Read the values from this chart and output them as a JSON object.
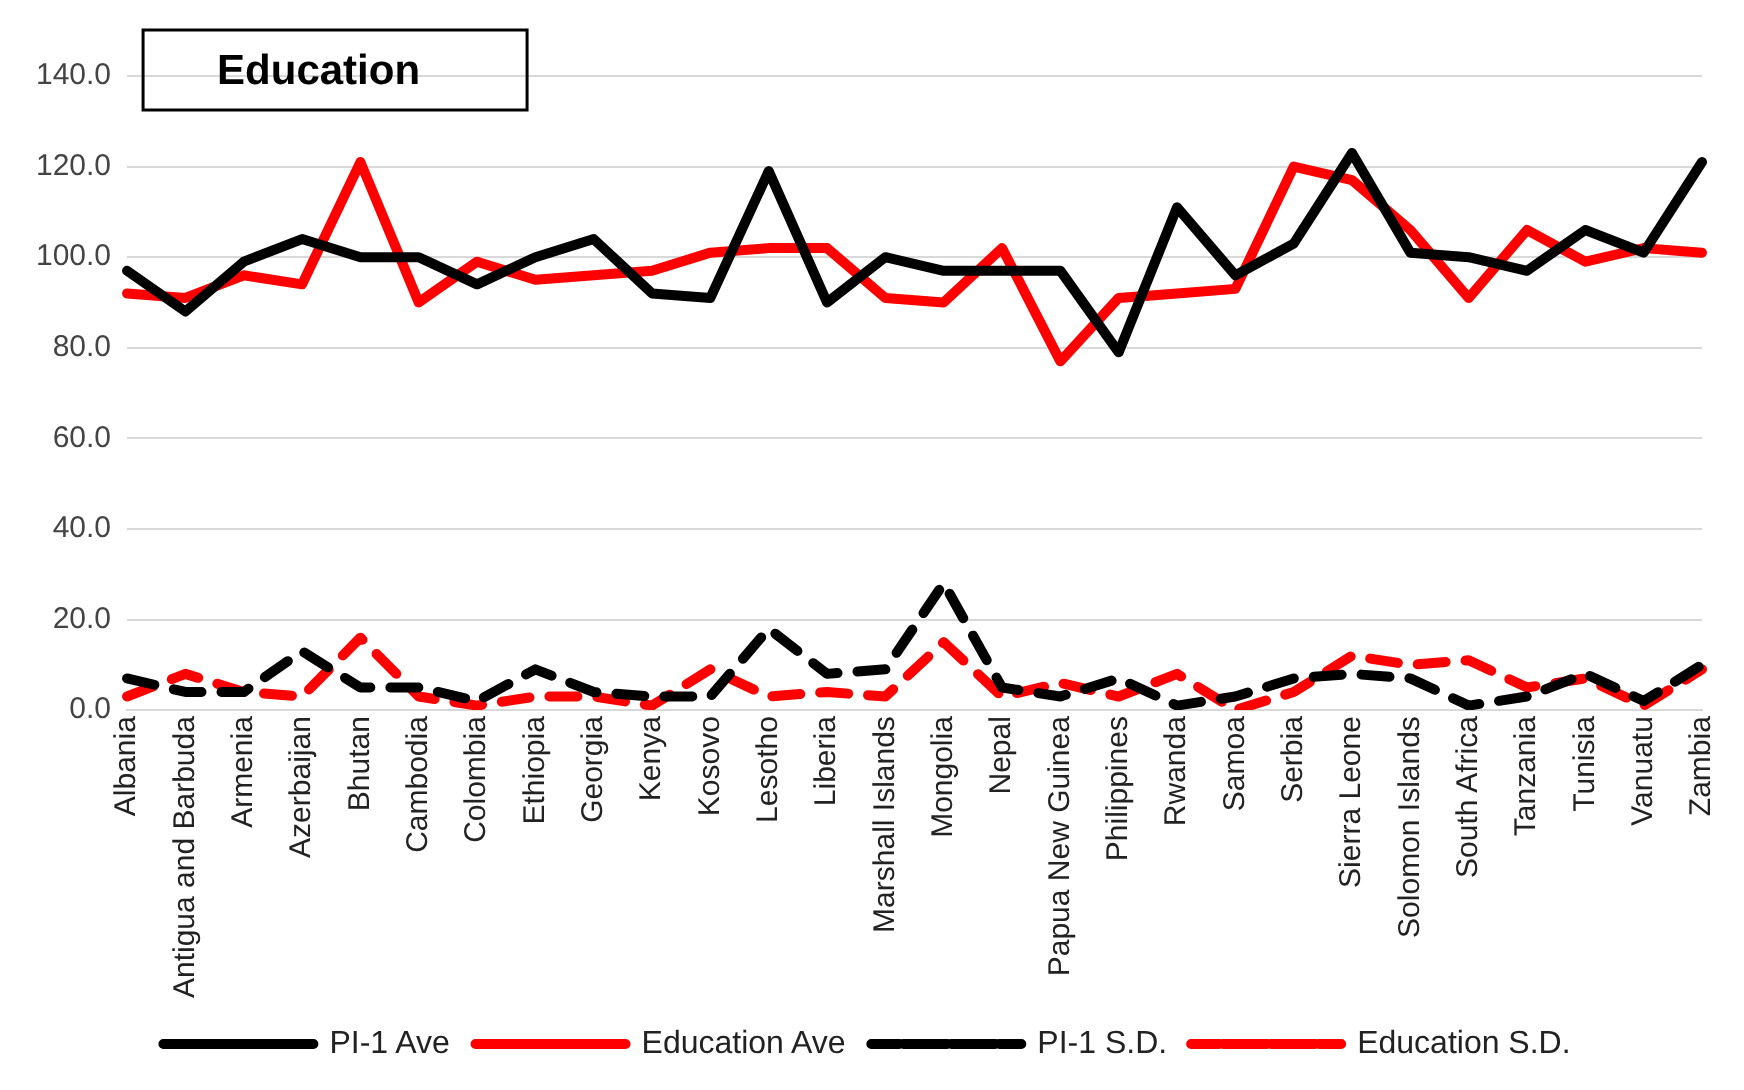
{
  "chart_data": {
    "type": "line",
    "title": "Education",
    "categories": [
      "Albania",
      "Antigua and Barbuda",
      "Armenia",
      "Azerbaijan",
      "Bhutan",
      "Cambodia",
      "Colombia",
      "Ethiopia",
      "Georgia",
      "Kenya",
      "Kosovo",
      "Lesotho",
      "Liberia",
      "Marshall Islands",
      "Mongolia",
      "Nepal",
      "Papua New Guinea",
      "Philippines",
      "Rwanda",
      "Samoa",
      "Serbia",
      "Sierra Leone",
      "Solomon Islands",
      "South Africa",
      "Tanzania",
      "Tunisia",
      "Vanuatu",
      "Zambia"
    ],
    "series": [
      {
        "name": "PI-1 Ave",
        "color": "#000000",
        "line_style": "solid",
        "values": [
          97,
          88,
          99,
          104,
          100,
          100,
          94,
          100,
          104,
          92,
          91,
          119,
          90,
          100,
          97,
          97,
          97,
          79,
          111,
          96,
          103,
          123,
          101,
          100,
          97,
          106,
          101,
          121
        ]
      },
      {
        "name": "Education Ave",
        "color": "#ff0000",
        "line_style": "solid",
        "values": [
          92,
          91,
          96,
          94,
          121,
          90,
          99,
          95,
          96,
          97,
          101,
          102,
          102,
          91,
          90,
          102,
          77,
          91,
          92,
          93,
          120,
          117,
          106,
          91,
          106,
          99,
          102,
          101
        ]
      },
      {
        "name": "PI-1 S.D.",
        "color": "#000000",
        "line_style": "dashed",
        "values": [
          7,
          4,
          4,
          13,
          5,
          5,
          2,
          9,
          4,
          3,
          3,
          18,
          8,
          9,
          28,
          5,
          3,
          7,
          1,
          3,
          7,
          8,
          7,
          1,
          3,
          8,
          2,
          10
        ]
      },
      {
        "name": "Education S.D.",
        "color": "#ff0000",
        "line_style": "dashed",
        "values": [
          3,
          8,
          4,
          3,
          16,
          3,
          1,
          3,
          3,
          1,
          9,
          3,
          4,
          3,
          15,
          3,
          6,
          3,
          8,
          0,
          4,
          12,
          10,
          11,
          5,
          7,
          1,
          9
        ]
      }
    ],
    "ylim": [
      0,
      140
    ],
    "yticks": [
      {
        "value": 0,
        "label": "0.0"
      },
      {
        "value": 20,
        "label": "20.0"
      },
      {
        "value": 40,
        "label": "40.0"
      },
      {
        "value": 60,
        "label": "60.0"
      },
      {
        "value": 80,
        "label": "80.0"
      },
      {
        "value": 100,
        "label": "100.0"
      },
      {
        "value": 120,
        "label": "120.0"
      },
      {
        "value": 140,
        "label": "140.0"
      }
    ],
    "grid": "y",
    "legend": "bottom",
    "marker": "none"
  }
}
